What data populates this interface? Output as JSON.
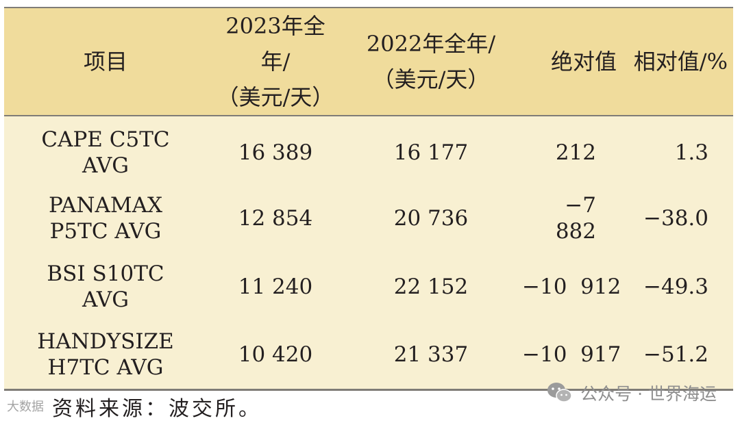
{
  "table": {
    "headers": [
      {
        "line1": "项目",
        "line2": ""
      },
      {
        "line1": "2023年全年/",
        "line2": "（美元/天）"
      },
      {
        "line1": "2022年全年/",
        "line2": "（美元/天）"
      },
      {
        "line1": "绝对值",
        "line2": ""
      },
      {
        "line1": "相对值/%",
        "line2": ""
      }
    ],
    "rows": [
      {
        "name1": "CAPE C5TC",
        "name2": "AVG",
        "y2023": "16 389",
        "y2022": "16 177",
        "abs": "212",
        "rel": "1.3"
      },
      {
        "name1": "PANAMAX",
        "name2": "P5TC AVG",
        "y2023": "12 854",
        "y2022": "20 736",
        "abs": "−7 882",
        "rel": "−38.0"
      },
      {
        "name1": "BSI S10TC",
        "name2": "AVG",
        "y2023": "11 240",
        "y2022": "22 152",
        "abs": "−10  912",
        "rel": "−49.3"
      },
      {
        "name1": "HANDYSIZE",
        "name2": "H7TC AVG",
        "y2023": "10 420",
        "y2022": "21 337",
        "abs": "−10  917",
        "rel": "−51.2"
      }
    ]
  },
  "source_note": "资料来源：波交所。",
  "watermarks": {
    "left_text": "大数据",
    "right_text": "公众号 · 世界海运",
    "right_icon": "wechat-icon"
  },
  "colors": {
    "header_bg": "#f0dc9c",
    "body_bg": "#f8f0d2",
    "rule": "#7f7c77"
  }
}
